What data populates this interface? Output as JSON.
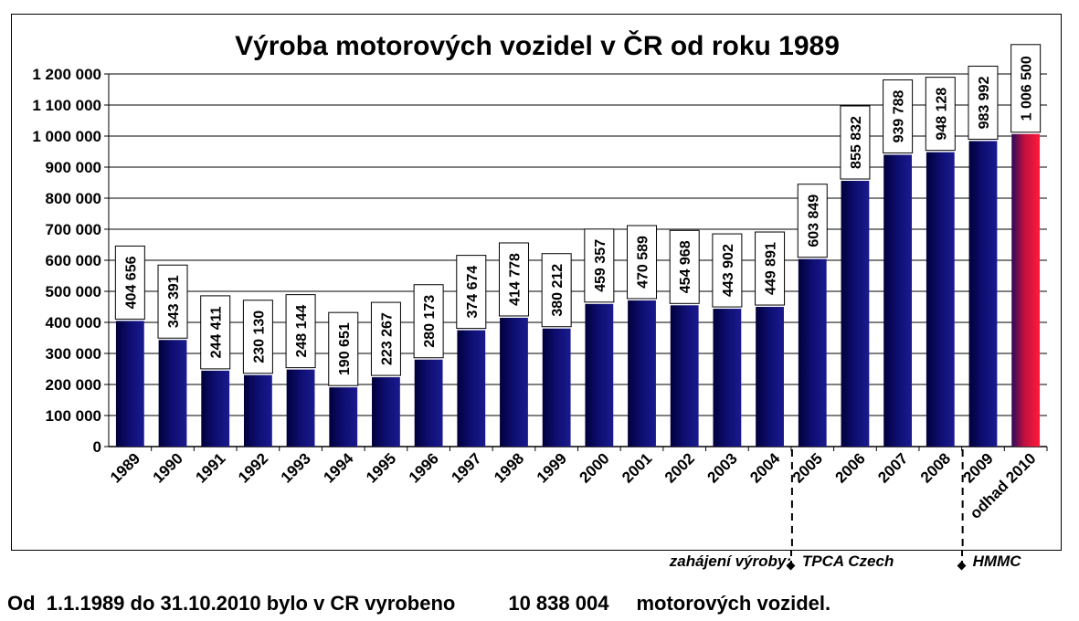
{
  "chart_data": {
    "type": "bar",
    "title": "Výroba motorových vozidel v ČR od roku 1989",
    "xlabel": "",
    "ylabel": "",
    "ylim": [
      0,
      1200000
    ],
    "yticks": [
      0,
      100000,
      200000,
      300000,
      400000,
      500000,
      600000,
      700000,
      800000,
      900000,
      1000000,
      1100000,
      1200000
    ],
    "ytick_labels": [
      "0",
      "100 000",
      "200 000",
      "300 000",
      "400 000",
      "500 000",
      "600 000",
      "700 000",
      "800 000",
      "900 000",
      "1 000 000",
      "1 100 000",
      "1 200 000"
    ],
    "grid": true,
    "categories": [
      "1989",
      "1990",
      "1991",
      "1992",
      "1993",
      "1994",
      "1995",
      "1996",
      "1997",
      "1998",
      "1999",
      "2000",
      "2001",
      "2002",
      "2003",
      "2004",
      "2005",
      "2006",
      "2007",
      "2008",
      "2009",
      "odhad 2010"
    ],
    "values": [
      404656,
      343391,
      244411,
      230130,
      248144,
      190651,
      223267,
      280173,
      374674,
      414778,
      380212,
      459357,
      470589,
      454968,
      443902,
      449891,
      603849,
      855832,
      939788,
      948128,
      983992,
      1006500
    ],
    "value_labels": [
      "404 656",
      "343 391",
      "244 411",
      "230 130",
      "248 144",
      "190 651",
      "223 267",
      "280 173",
      "374 674",
      "414 778",
      "380 212",
      "459 357",
      "470 589",
      "454 968",
      "443 902",
      "449 891",
      "603 849",
      "855 832",
      "939 788",
      "948 128",
      "983 992",
      "1 006 500"
    ],
    "colors": {
      "bar": "#0a0a5e",
      "bar_highlight_top": "#7a1070",
      "bar_highlight": "#ff1a3a"
    },
    "annotations": {
      "start_label": "zahájení výroby:",
      "markers": [
        {
          "category": "2005",
          "label": "TPCA Czech"
        },
        {
          "category": "2009",
          "label": "HMMC"
        }
      ]
    }
  },
  "footer": {
    "prefix": "Od  1.1.1989 do 31.10.2010 bylo v CR vyrobeno",
    "total": "10 838 004",
    "suffix": "motorových vozidel."
  }
}
